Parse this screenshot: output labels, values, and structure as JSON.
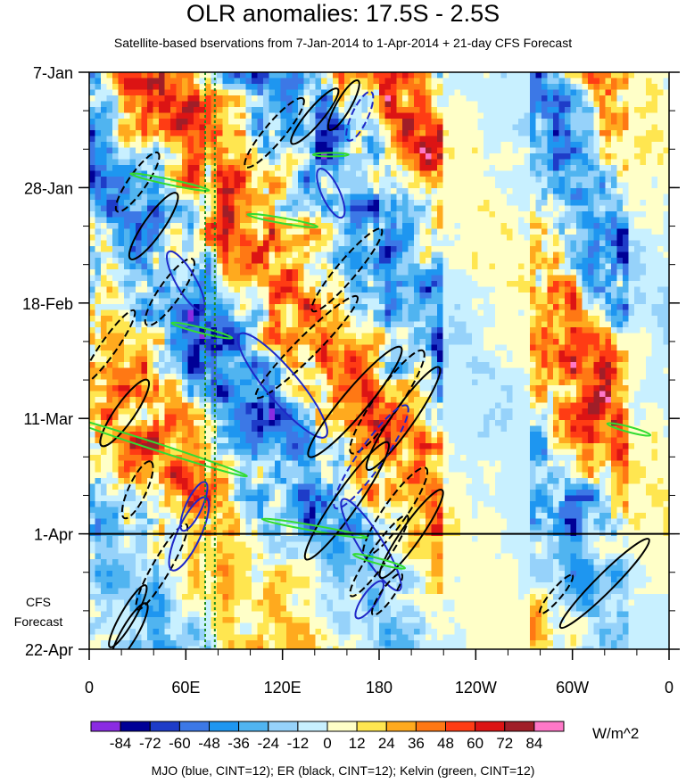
{
  "chart_data": {
    "type": "heatmap",
    "title": "OLR anomalies: 17.5S - 2.5S",
    "subtitle": "Satellite-based bservations from 7-Jan-2014 to 1-Apr-2014 + 21-day CFS Forecast",
    "y_ticks": [
      "7-Jan",
      "28-Jan",
      "18-Feb",
      "11-Mar",
      "1-Apr",
      "22-Apr"
    ],
    "x_ticks": [
      "0",
      "60E",
      "120E",
      "180",
      "120W",
      "60W",
      "0"
    ],
    "x_range_deg_east": [
      0,
      360
    ],
    "y_range": [
      "7-Jan-2014",
      "22-Apr-2014"
    ],
    "observation_end": "1-Apr",
    "forecast_label": [
      "CFS",
      "Forecast"
    ],
    "colorbar": {
      "levels": [
        "-84",
        "-72",
        "-60",
        "-48",
        "-36",
        "-24",
        "-12",
        "0",
        "12",
        "24",
        "36",
        "48",
        "60",
        "72",
        "84"
      ],
      "colors": [
        "#8a2be2",
        "#000096",
        "#1e3cc8",
        "#3c78e6",
        "#1e96f0",
        "#50b4f0",
        "#96d2fa",
        "#c8f0ff",
        "#ffffc8",
        "#ffe650",
        "#ffaa1e",
        "#ff7814",
        "#ff3c14",
        "#dc1414",
        "#a01e28",
        "#ff78c8"
      ],
      "units": "W/m^2"
    },
    "contours_legend": "MJO (blue, CINT=12); ER (black, CINT=12); Kelvin (green, CINT=12)",
    "series_colors": {
      "MJO": "#1e28c8",
      "ER": "#000000",
      "Kelvin": "#32dc32"
    },
    "reference_lines": {
      "vertical_dotted_lon_deg_east": [
        72,
        78
      ],
      "vertical_dotted_color": "#1e8c1e"
    }
  }
}
